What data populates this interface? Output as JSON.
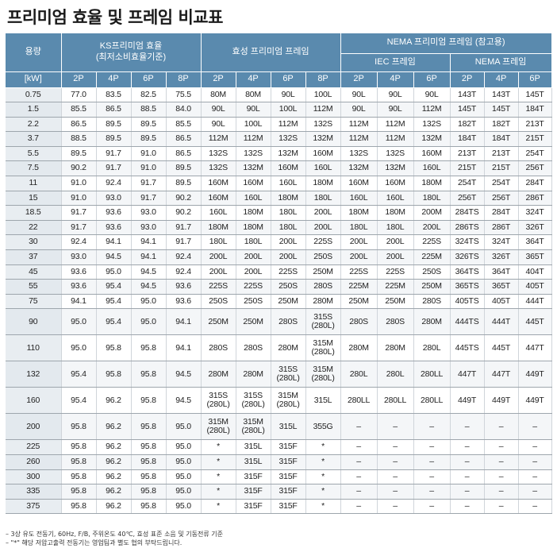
{
  "title": "프리미엄 효율 및 프레임 비교표",
  "header": {
    "capacity": "용량",
    "ks_line1": "KS프리미엄 효율",
    "ks_line2": "(최저소비효율기준)",
    "hs_group": "효성 프리미엄 프레임",
    "nema_group": "NEMA 프리미엄 프레임 (참고용)",
    "iec_group": "IEC 프레임",
    "nema_sub": "NEMA 프레임",
    "unit": "[kW]",
    "poles": [
      "2P",
      "4P",
      "6P",
      "8P",
      "2P",
      "4P",
      "6P",
      "8P",
      "2P",
      "4P",
      "6P",
      "2P",
      "4P",
      "6P"
    ]
  },
  "rows": [
    [
      "0.75",
      "77.0",
      "83.5",
      "82.5",
      "75.5",
      "80M",
      "80M",
      "90L",
      "100L",
      "90L",
      "90L",
      "90L",
      "143T",
      "143T",
      "145T"
    ],
    [
      "1.5",
      "85.5",
      "86.5",
      "88.5",
      "84.0",
      "90L",
      "90L",
      "100L",
      "112M",
      "90L",
      "90L",
      "112M",
      "145T",
      "145T",
      "184T"
    ],
    [
      "2.2",
      "86.5",
      "89.5",
      "89.5",
      "85.5",
      "90L",
      "100L",
      "112M",
      "132S",
      "112M",
      "112M",
      "132S",
      "182T",
      "182T",
      "213T"
    ],
    [
      "3.7",
      "88.5",
      "89.5",
      "89.5",
      "86.5",
      "112M",
      "112M",
      "132S",
      "132M",
      "112M",
      "112M",
      "132M",
      "184T",
      "184T",
      "215T"
    ],
    [
      "5.5",
      "89.5",
      "91.7",
      "91.0",
      "86.5",
      "132S",
      "132S",
      "132M",
      "160M",
      "132S",
      "132S",
      "160M",
      "213T",
      "213T",
      "254T"
    ],
    [
      "7.5",
      "90.2",
      "91.7",
      "91.0",
      "89.5",
      "132S",
      "132M",
      "160M",
      "160L",
      "132M",
      "132M",
      "160L",
      "215T",
      "215T",
      "256T"
    ],
    [
      "11",
      "91.0",
      "92.4",
      "91.7",
      "89.5",
      "160M",
      "160M",
      "160L",
      "180M",
      "160M",
      "160M",
      "180M",
      "254T",
      "254T",
      "284T"
    ],
    [
      "15",
      "91.0",
      "93.0",
      "91.7",
      "90.2",
      "160M",
      "160L",
      "180M",
      "180L",
      "160L",
      "160L",
      "180L",
      "256T",
      "256T",
      "286T"
    ],
    [
      "18.5",
      "91.7",
      "93.6",
      "93.0",
      "90.2",
      "160L",
      "180M",
      "180L",
      "200L",
      "180M",
      "180M",
      "200M",
      "284TS",
      "284T",
      "324T"
    ],
    [
      "22",
      "91.7",
      "93.6",
      "93.0",
      "91.7",
      "180M",
      "180M",
      "180L",
      "200L",
      "180L",
      "180L",
      "200L",
      "286TS",
      "286T",
      "326T"
    ],
    [
      "30",
      "92.4",
      "94.1",
      "94.1",
      "91.7",
      "180L",
      "180L",
      "200L",
      "225S",
      "200L",
      "200L",
      "225S",
      "324TS",
      "324T",
      "364T"
    ],
    [
      "37",
      "93.0",
      "94.5",
      "94.1",
      "92.4",
      "200L",
      "200L",
      "200L",
      "250S",
      "200L",
      "200L",
      "225M",
      "326TS",
      "326T",
      "365T"
    ],
    [
      "45",
      "93.6",
      "95.0",
      "94.5",
      "92.4",
      "200L",
      "200L",
      "225S",
      "250M",
      "225S",
      "225S",
      "250S",
      "364TS",
      "364T",
      "404T"
    ],
    [
      "55",
      "93.6",
      "95.4",
      "94.5",
      "93.6",
      "225S",
      "225S",
      "250S",
      "280S",
      "225M",
      "225M",
      "250M",
      "365TS",
      "365T",
      "405T"
    ],
    [
      "75",
      "94.1",
      "95.4",
      "95.0",
      "93.6",
      "250S",
      "250S",
      "250M",
      "280M",
      "250M",
      "250M",
      "280S",
      "405TS",
      "405T",
      "444T"
    ],
    [
      "90",
      "95.0",
      "95.4",
      "95.0",
      "94.1",
      "250M",
      "250M",
      "280S",
      "315S (280L)",
      "280S",
      "280S",
      "280M",
      "444TS",
      "444T",
      "445T"
    ],
    [
      "110",
      "95.0",
      "95.8",
      "95.8",
      "94.1",
      "280S",
      "280S",
      "280M",
      "315M (280L)",
      "280M",
      "280M",
      "280L",
      "445TS",
      "445T",
      "447T"
    ],
    [
      "132",
      "95.4",
      "95.8",
      "95.8",
      "94.5",
      "280M",
      "280M",
      "315S (280L)",
      "315M (280L)",
      "280L",
      "280L",
      "280LL",
      "447T",
      "447T",
      "449T"
    ],
    [
      "160",
      "95.4",
      "96.2",
      "95.8",
      "94.5",
      "315S (280L)",
      "315S (280L)",
      "315M (280L)",
      "315L",
      "280LL",
      "280LL",
      "280LL",
      "449T",
      "449T",
      "449T"
    ],
    [
      "200",
      "95.8",
      "96.2",
      "95.8",
      "95.0",
      "315M (280L)",
      "315M (280L)",
      "315L",
      "355G",
      "–",
      "–",
      "–",
      "–",
      "–",
      "–"
    ],
    [
      "225",
      "95.8",
      "96.2",
      "95.8",
      "95.0",
      "*",
      "315L",
      "315F",
      "*",
      "–",
      "–",
      "–",
      "–",
      "–",
      "–"
    ],
    [
      "260",
      "95.8",
      "96.2",
      "95.8",
      "95.0",
      "*",
      "315L",
      "315F",
      "*",
      "–",
      "–",
      "–",
      "–",
      "–",
      "–"
    ],
    [
      "300",
      "95.8",
      "96.2",
      "95.8",
      "95.0",
      "*",
      "315F",
      "315F",
      "*",
      "–",
      "–",
      "–",
      "–",
      "–",
      "–"
    ],
    [
      "335",
      "95.8",
      "96.2",
      "95.8",
      "95.0",
      "*",
      "315F",
      "315F",
      "*",
      "–",
      "–",
      "–",
      "–",
      "–",
      "–"
    ],
    [
      "375",
      "95.8",
      "96.2",
      "95.8",
      "95.0",
      "*",
      "315F",
      "315F",
      "*",
      "–",
      "–",
      "–",
      "–",
      "–",
      "–"
    ]
  ],
  "notes": [
    "– 3상 유도 전동기, 60Hz, F/B, 주위온도 40℃, 효성 표준 소음 및 기동전류 기준",
    "– \"*\" 해당 저압고출력 전동기는 영업팀과 별도 협의 부탁드립니다."
  ]
}
